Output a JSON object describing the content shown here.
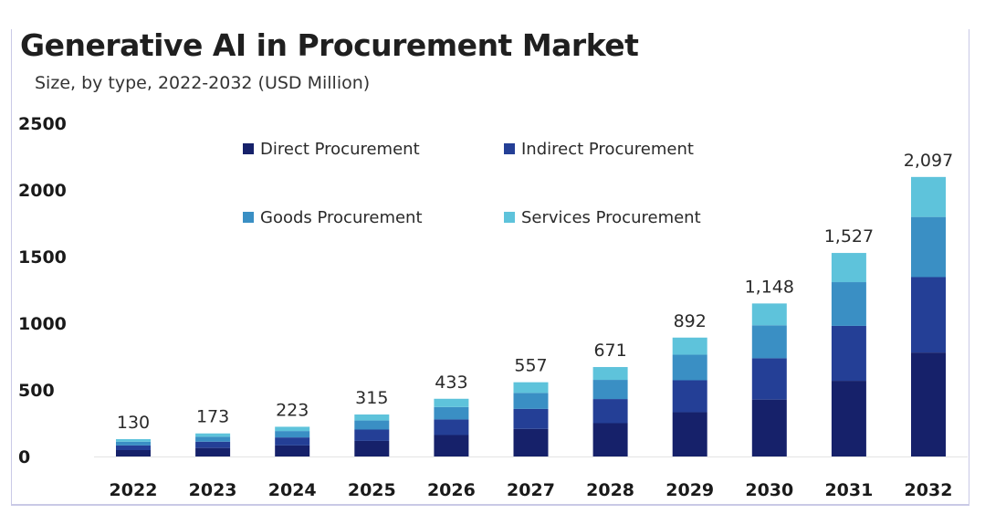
{
  "header": {
    "title": "Generative AI in Procurement Market",
    "subtitle": "Size, by type, 2022-2032 (USD Million)"
  },
  "chart_data": {
    "type": "bar",
    "stacked": true,
    "title": "Generative AI in Procurement Market",
    "subtitle": "Size, by type, 2022-2032 (USD Million)",
    "xlabel": "",
    "ylabel": "",
    "ylim": [
      0,
      2500
    ],
    "yticks": [
      0,
      500,
      1000,
      1500,
      2000,
      2500
    ],
    "grid": false,
    "legend_position": "top-center",
    "categories": [
      "2022",
      "2023",
      "2024",
      "2025",
      "2026",
      "2027",
      "2028",
      "2029",
      "2030",
      "2031",
      "2032"
    ],
    "totals": [
      130,
      173,
      223,
      315,
      433,
      557,
      671,
      892,
      1148,
      1527,
      2097
    ],
    "total_labels": [
      "130",
      "173",
      "223",
      "315",
      "433",
      "557",
      "671",
      "892",
      "1,148",
      "1,527",
      "2,097"
    ],
    "series": [
      {
        "name": "Direct Procurement",
        "color": "#16216a",
        "values": [
          48,
          64,
          83,
          117,
          161,
          207,
          250,
          332,
          427,
          568,
          780
        ]
      },
      {
        "name": "Indirect Procurement",
        "color": "#243f96",
        "values": [
          35,
          47,
          60,
          85,
          117,
          150,
          181,
          240,
          310,
          412,
          566
        ]
      },
      {
        "name": "Goods Procurement",
        "color": "#3a8fc4",
        "values": [
          28,
          37,
          48,
          68,
          93,
          120,
          144,
          192,
          247,
          328,
          451
        ]
      },
      {
        "name": "Services Procurement",
        "color": "#5ec3db",
        "values": [
          19,
          25,
          32,
          45,
          62,
          80,
          96,
          128,
          164,
          219,
          300
        ]
      }
    ]
  }
}
